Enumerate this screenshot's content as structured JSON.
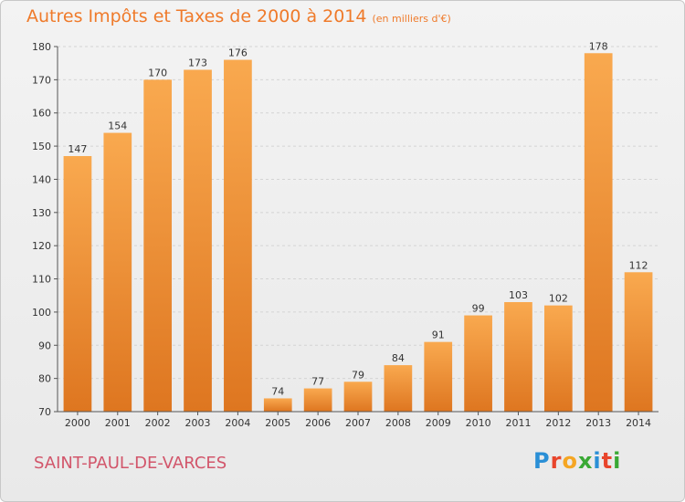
{
  "header": {
    "title": "Autres Impôts et Taxes de 2000 à 2014",
    "unit": "(en milliers d'€)"
  },
  "footer": {
    "city": "SAINT-PAUL-DE-VARCES",
    "logo_letters": [
      "P",
      "r",
      "o",
      "x",
      "i",
      "t",
      "i"
    ],
    "logo_colors": [
      "#2a8fd6",
      "#e8452c",
      "#f5a623",
      "#3aa935",
      "#2a8fd6",
      "#e8452c",
      "#3aa935"
    ]
  },
  "colors": {
    "bar_light": "#f9a94f",
    "bar_dark": "#de7620",
    "grid": "#d4d4d4"
  },
  "chart_data": {
    "type": "bar",
    "title": "Autres Impôts et Taxes de 2000 à 2014",
    "subtitle": "(en milliers d'€)",
    "xlabel": "",
    "ylabel": "",
    "categories": [
      "2000",
      "2001",
      "2002",
      "2003",
      "2004",
      "2005",
      "2006",
      "2007",
      "2008",
      "2009",
      "2010",
      "2011",
      "2012",
      "2013",
      "2014"
    ],
    "values": [
      147,
      154,
      170,
      173,
      176,
      74,
      77,
      79,
      84,
      91,
      99,
      103,
      102,
      178,
      112
    ],
    "ylim": [
      70,
      180
    ],
    "yticks": [
      70,
      80,
      90,
      100,
      110,
      120,
      130,
      140,
      150,
      160,
      170,
      180
    ],
    "grid": true,
    "legend": "none"
  }
}
